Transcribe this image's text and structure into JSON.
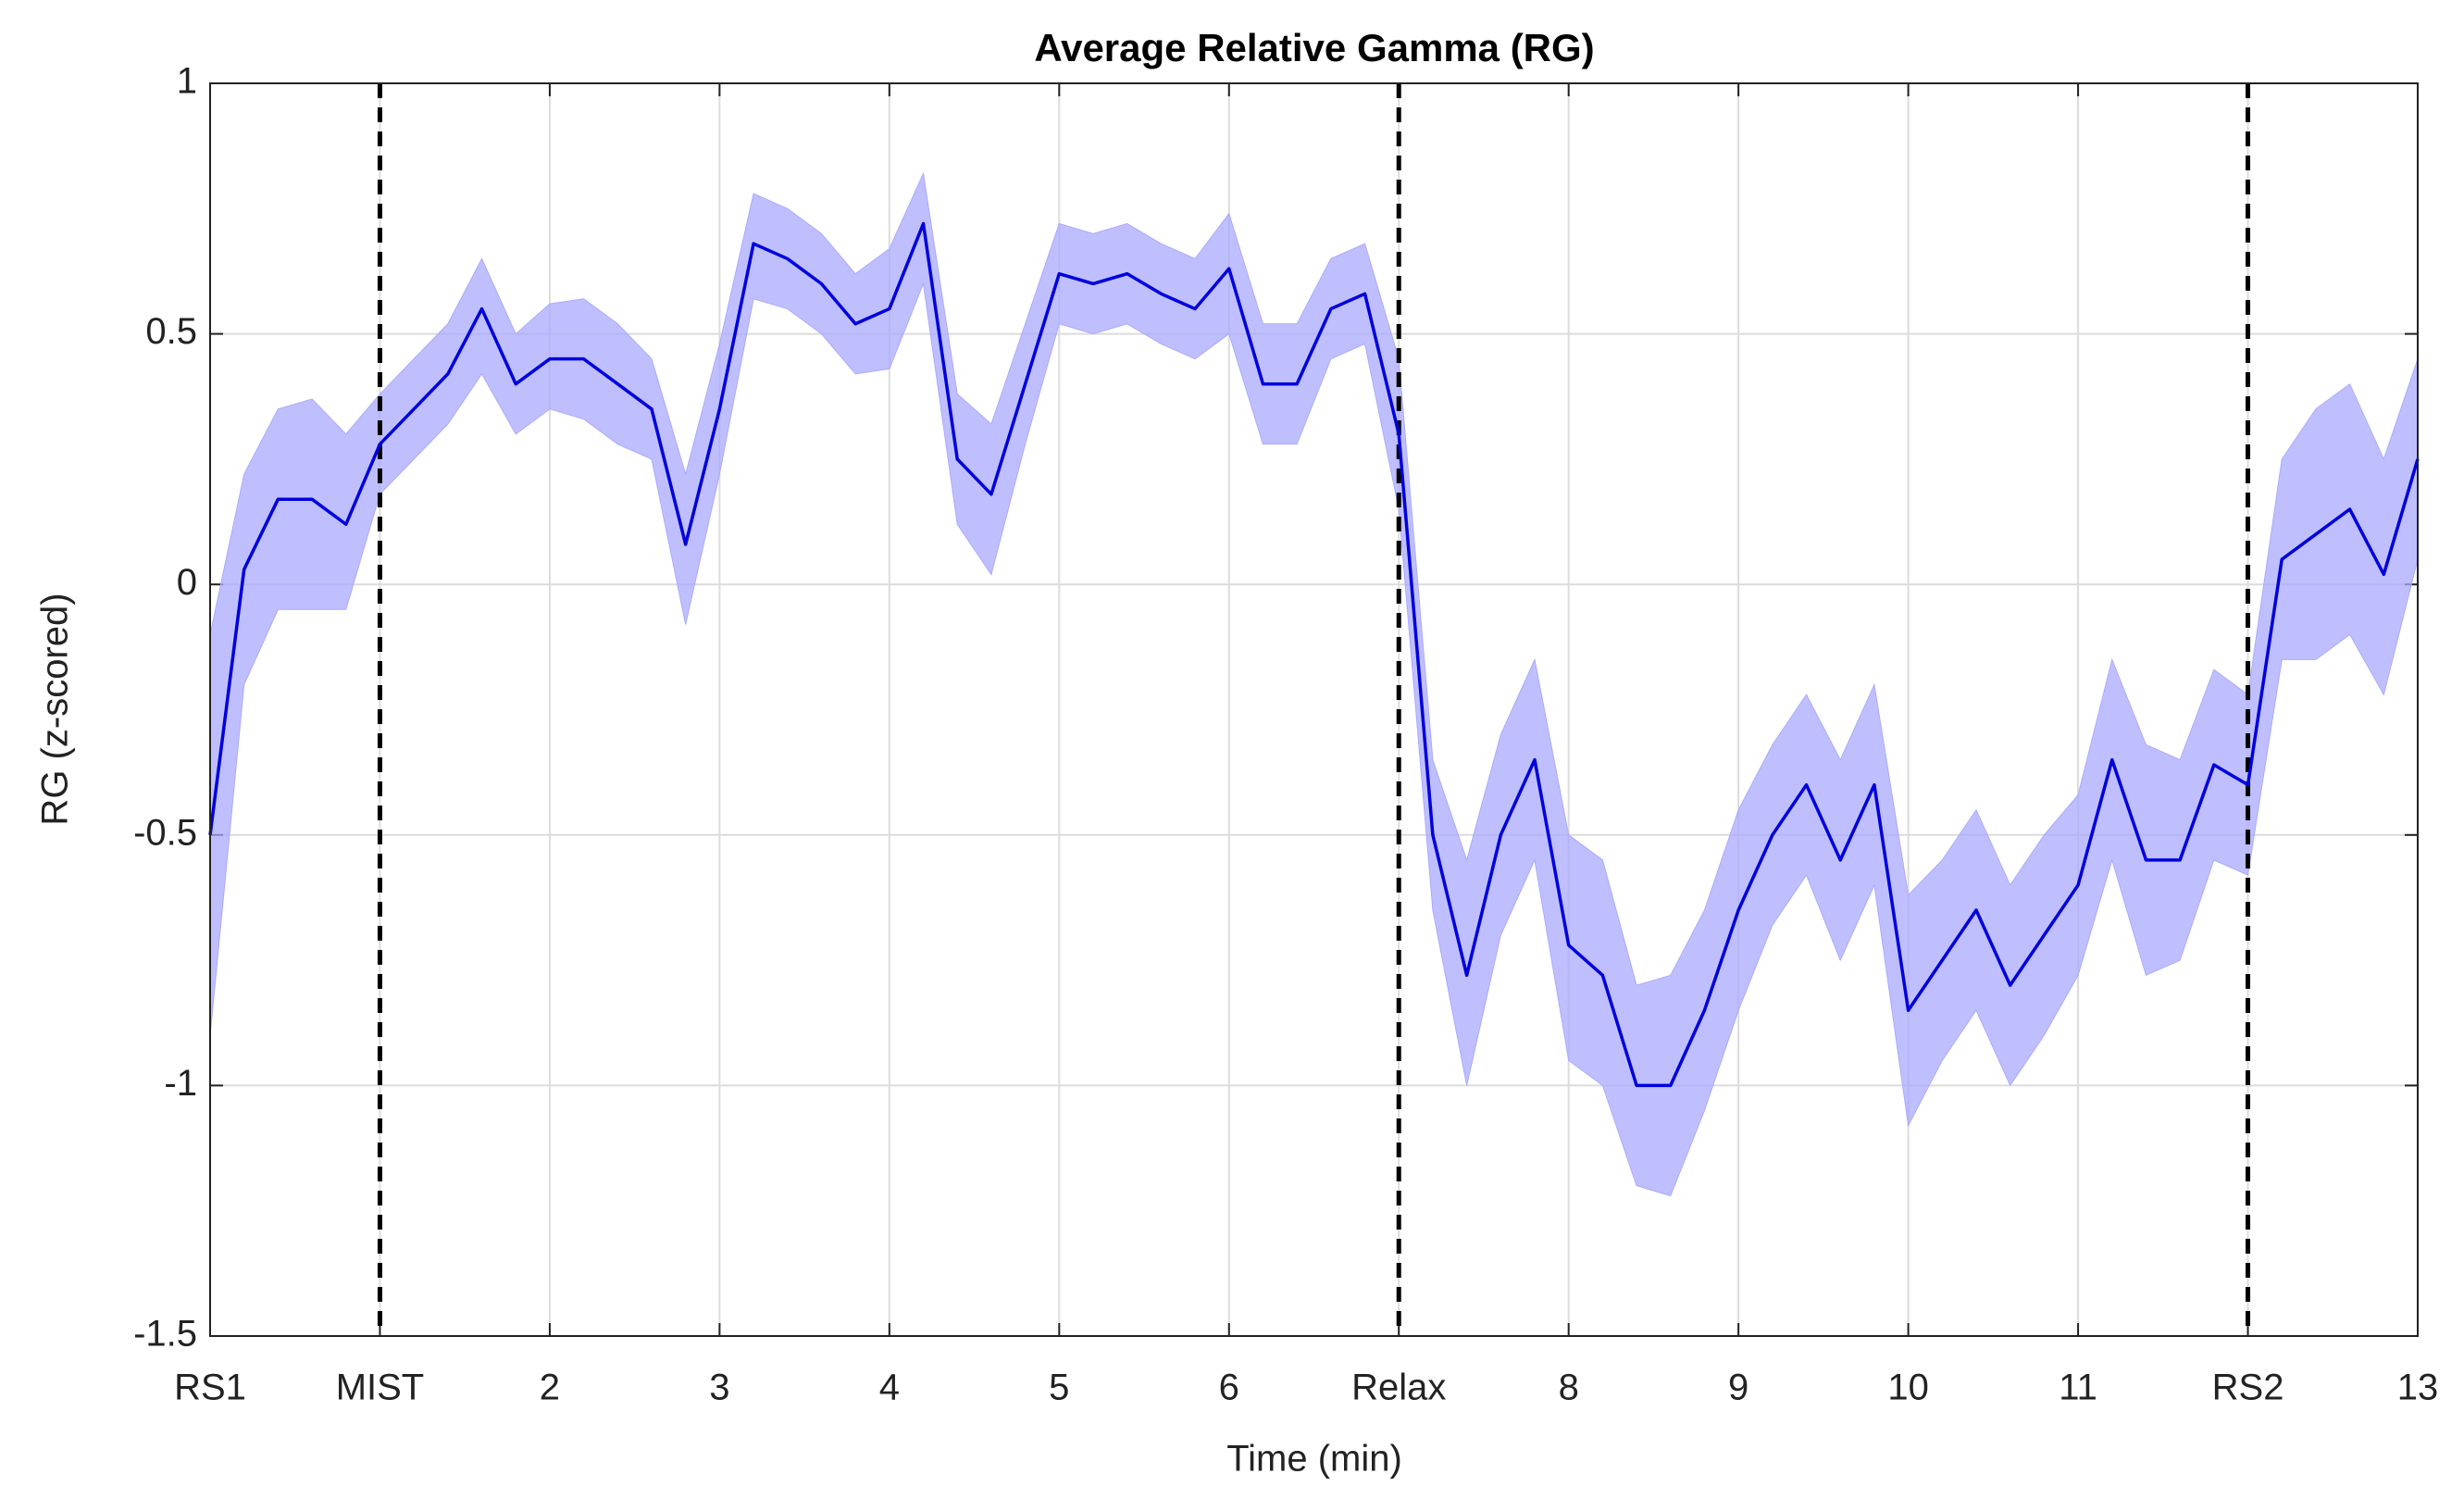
{
  "chart_data": {
    "type": "line",
    "title": "Average Relative Gamma (RG)",
    "xlabel": "Time (min)",
    "ylabel": "RG (z-scored)",
    "x": [
      0,
      0.2,
      0.4,
      0.6,
      0.8,
      1.0,
      1.2,
      1.4,
      1.6,
      1.8,
      2.0,
      2.2,
      2.4,
      2.6,
      2.8,
      3.0,
      3.2,
      3.4,
      3.6,
      3.8,
      4.0,
      4.2,
      4.4,
      4.6,
      4.8,
      5.0,
      5.2,
      5.4,
      5.6,
      5.8,
      6.0,
      6.2,
      6.4,
      6.6,
      6.8,
      7.0,
      7.2,
      7.4,
      7.6,
      7.8,
      8.0,
      8.2,
      8.4,
      8.6,
      8.8,
      9.0,
      9.2,
      9.4,
      9.6,
      9.8,
      10.0,
      10.2,
      10.4,
      10.6,
      10.8,
      11.0,
      11.2,
      11.4,
      11.6,
      11.8,
      12.0,
      12.2,
      12.4,
      12.6,
      12.8,
      13.0
    ],
    "series": [
      {
        "color": "#0000dd",
        "values": [
          -0.5,
          0.03,
          0.17,
          0.17,
          0.12,
          0.28,
          0.35,
          0.42,
          0.55,
          0.4,
          0.45,
          0.45,
          0.4,
          0.35,
          0.08,
          0.35,
          0.68,
          0.65,
          0.6,
          0.52,
          0.55,
          0.72,
          0.25,
          0.18,
          0.4,
          0.62,
          0.6,
          0.62,
          0.58,
          0.55,
          0.63,
          0.4,
          0.4,
          0.55,
          0.58,
          0.3,
          -0.5,
          -0.78,
          -0.5,
          -0.35,
          -0.72,
          -0.78,
          -1.0,
          -1.0,
          -0.85,
          -0.65,
          -0.5,
          -0.4,
          -0.55,
          -0.4,
          -0.85,
          -0.75,
          -0.65,
          -0.8,
          -0.7,
          -0.6,
          -0.35,
          -0.55,
          -0.55,
          -0.36,
          -0.4,
          0.05,
          0.1,
          0.15,
          0.02,
          0.25
        ]
      }
    ],
    "band": {
      "color": "#aaaaff",
      "lower": [
        -0.9,
        -0.2,
        -0.05,
        -0.05,
        -0.05,
        0.18,
        0.25,
        0.32,
        0.42,
        0.3,
        0.35,
        0.33,
        0.28,
        0.25,
        -0.08,
        0.22,
        0.57,
        0.55,
        0.5,
        0.42,
        0.43,
        0.6,
        0.12,
        0.02,
        0.28,
        0.52,
        0.5,
        0.52,
        0.48,
        0.45,
        0.5,
        0.28,
        0.28,
        0.45,
        0.48,
        0.15,
        -0.65,
        -1.0,
        -0.7,
        -0.55,
        -0.95,
        -1.0,
        -1.2,
        -1.22,
        -1.05,
        -0.85,
        -0.68,
        -0.58,
        -0.75,
        -0.6,
        -1.08,
        -0.95,
        -0.85,
        -1.0,
        -0.9,
        -0.78,
        -0.55,
        -0.78,
        -0.75,
        -0.55,
        -0.58,
        -0.15,
        -0.15,
        -0.1,
        -0.22,
        0.05
      ],
      "upper": [
        -0.1,
        0.22,
        0.35,
        0.37,
        0.3,
        0.38,
        0.45,
        0.52,
        0.65,
        0.5,
        0.56,
        0.57,
        0.52,
        0.45,
        0.22,
        0.48,
        0.78,
        0.75,
        0.7,
        0.62,
        0.67,
        0.82,
        0.38,
        0.32,
        0.52,
        0.72,
        0.7,
        0.72,
        0.68,
        0.65,
        0.74,
        0.52,
        0.52,
        0.65,
        0.68,
        0.45,
        -0.35,
        -0.55,
        -0.3,
        -0.15,
        -0.5,
        -0.55,
        -0.8,
        -0.78,
        -0.65,
        -0.45,
        -0.32,
        -0.22,
        -0.35,
        -0.2,
        -0.62,
        -0.55,
        -0.45,
        -0.6,
        -0.5,
        -0.42,
        -0.15,
        -0.32,
        -0.35,
        -0.17,
        -0.22,
        0.25,
        0.35,
        0.4,
        0.25,
        0.45
      ]
    },
    "vlines": [
      1,
      7,
      12
    ],
    "xlim": [
      0,
      13
    ],
    "ylim": [
      -1.5,
      1
    ],
    "xticks": [
      {
        "value": 0,
        "label": "RS1"
      },
      {
        "value": 1,
        "label": "MIST"
      },
      2,
      3,
      4,
      5,
      6,
      {
        "value": 7,
        "label": "Relax"
      },
      8,
      9,
      10,
      11,
      {
        "value": 12,
        "label": "RS2"
      },
      13
    ],
    "yticks": [
      -1.5,
      -1,
      -0.5,
      0,
      0.5,
      1
    ],
    "grid": true
  }
}
